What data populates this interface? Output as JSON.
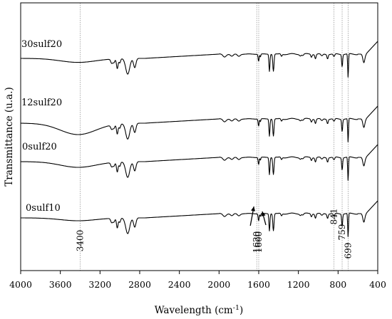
{
  "chart_data": {
    "type": "line",
    "xlabel": "Wavelength (cm",
    "xlabel_sup": "-1",
    "xlabel_close": ")",
    "ylabel": "Transmittance (u.a.)",
    "xlim": [
      4000,
      400
    ],
    "x_reversed": true,
    "x_ticks": [
      4000,
      3600,
      3200,
      2800,
      2400,
      2000,
      1600,
      1200,
      800,
      400
    ],
    "y_ticks_shown": false,
    "grid": false,
    "reference_lines": [
      3400,
      1620,
      1600,
      841,
      759,
      699
    ],
    "annotations": [
      {
        "text": "3400",
        "x": 3400
      },
      {
        "text": "1620",
        "x": 1620,
        "arrow": true
      },
      {
        "text": "1600",
        "x": 1600,
        "arrow": true
      },
      {
        "text": "841",
        "x": 841
      },
      {
        "text": "759",
        "x": 759
      },
      {
        "text": "699",
        "x": 699
      }
    ],
    "series": [
      {
        "name": "30sulf20",
        "broad_3400_depth": 0.35
      },
      {
        "name": "12sulf20",
        "broad_3400_depth": 1.0
      },
      {
        "name": "0sulf20",
        "broad_3400_depth": 0.5
      },
      {
        "name": "0sulf10",
        "broad_3400_depth": 0.25
      }
    ]
  }
}
